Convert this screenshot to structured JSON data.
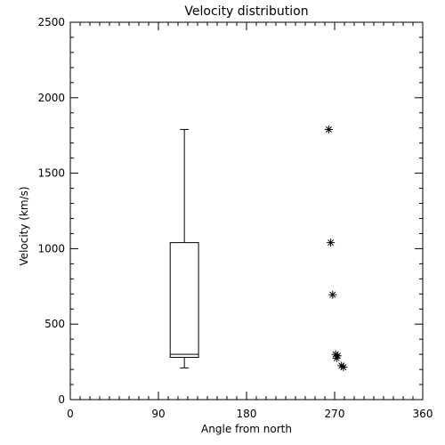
{
  "chart_data": {
    "type": "box-and-scatter",
    "title": "Velocity distribution",
    "xlabel": "Angle from north",
    "ylabel": "Velocity (km/s)",
    "xlim": [
      0,
      360
    ],
    "ylim": [
      0,
      2500
    ],
    "x_ticks": [
      0,
      90,
      180,
      270,
      360
    ],
    "x_tick_labels": [
      "0",
      "90",
      "180",
      "270",
      "360"
    ],
    "y_ticks": [
      0,
      500,
      1000,
      1500,
      2000,
      2500
    ],
    "y_tick_labels": [
      "0",
      "500",
      "1000",
      "1500",
      "2000",
      "2500"
    ],
    "x_minor_step": 10,
    "y_minor_step": 100,
    "grid": false,
    "colors": {
      "axes": "#000000",
      "background": "#ffffff"
    },
    "box": {
      "x_range": [
        102,
        131
      ],
      "whisker_low": 210,
      "q1": 280,
      "median": 300,
      "q3": 1040,
      "whisker_high": 1790
    },
    "points": [
      {
        "x": 264,
        "y": 1790
      },
      {
        "x": 266,
        "y": 1040
      },
      {
        "x": 268,
        "y": 695
      },
      {
        "x": 271,
        "y": 300
      },
      {
        "x": 273,
        "y": 290
      },
      {
        "x": 272,
        "y": 275
      },
      {
        "x": 277,
        "y": 225
      },
      {
        "x": 279,
        "y": 215
      }
    ],
    "marker": "asterisk"
  }
}
